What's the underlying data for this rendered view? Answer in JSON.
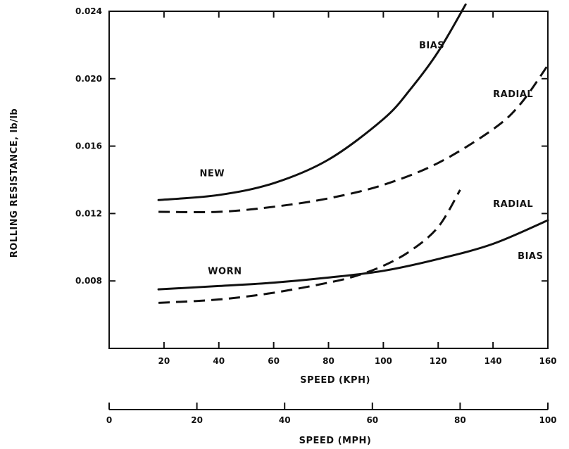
{
  "chart_data": {
    "type": "line",
    "title": "",
    "xlabel": "SPEED (KPH)",
    "ylabel": "ROLLING RESISTANCE, lb/lb",
    "xlim": [
      0,
      160
    ],
    "ylim": [
      0.004,
      0.024
    ],
    "x_ticks": [
      "20",
      "40",
      "60",
      "80",
      "100",
      "120",
      "140",
      "160"
    ],
    "y_ticks": [
      "0.008",
      "0.012",
      "0.016",
      "0.020",
      "0.024"
    ],
    "secondary_x_axis": {
      "label": "SPEED (MPH)",
      "range": [
        0,
        100
      ],
      "ticks": [
        "0",
        "20",
        "40",
        "60",
        "80",
        "100"
      ]
    },
    "grid": false,
    "series": [
      {
        "name": "NEW BIAS",
        "style": "solid",
        "x": [
          18,
          40,
          60,
          80,
          100,
          110,
          120,
          130
        ],
        "y": [
          0.0128,
          0.0131,
          0.0138,
          0.0152,
          0.0176,
          0.0194,
          0.0216,
          0.0244
        ]
      },
      {
        "name": "NEW RADIAL",
        "style": "dashed",
        "x": [
          18,
          40,
          60,
          80,
          100,
          120,
          140,
          150,
          160
        ],
        "y": [
          0.0121,
          0.0121,
          0.0124,
          0.0129,
          0.0137,
          0.015,
          0.017,
          0.0185,
          0.0208
        ]
      },
      {
        "name": "WORN BIAS",
        "style": "solid",
        "x": [
          18,
          40,
          60,
          80,
          100,
          120,
          140,
          160
        ],
        "y": [
          0.0075,
          0.0077,
          0.0079,
          0.0082,
          0.0086,
          0.0093,
          0.0102,
          0.0116
        ]
      },
      {
        "name": "WORN RADIAL",
        "style": "dashed",
        "x": [
          18,
          40,
          60,
          80,
          90,
          100,
          110,
          120,
          128
        ],
        "y": [
          0.0067,
          0.0069,
          0.0073,
          0.0079,
          0.0083,
          0.0089,
          0.0098,
          0.0112,
          0.0134
        ]
      }
    ],
    "annotations": [
      {
        "text": "BIAS",
        "x": 113,
        "y": 0.0218
      },
      {
        "text": "RADIAL",
        "x": 140,
        "y": 0.0189
      },
      {
        "text": "NEW",
        "x": 33,
        "y": 0.0142
      },
      {
        "text": "RADIAL",
        "x": 140,
        "y": 0.0124
      },
      {
        "text": "WORN",
        "x": 36,
        "y": 0.0084
      },
      {
        "text": "BIAS",
        "x": 149,
        "y": 0.0093
      }
    ]
  }
}
